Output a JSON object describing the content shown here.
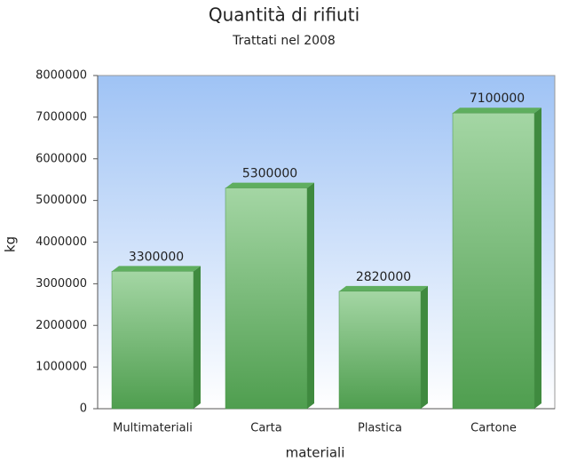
{
  "chart_data": {
    "type": "bar3d",
    "title": "Quantità di rifiuti",
    "subtitle": "Trattati nel 2008",
    "x_label": "materiali",
    "y_label": "kg",
    "categories": [
      "Multimateriali",
      "Carta",
      "Plastica",
      "Cartone"
    ],
    "values": [
      3300000,
      5300000,
      2820000,
      7100000
    ],
    "color": "#5fae5f",
    "ylim": [
      0,
      8000000
    ],
    "yticks": [
      0,
      1000000,
      2000000,
      3000000,
      4000000,
      5000000,
      6000000,
      7000000,
      8000000
    ],
    "grid": false
  }
}
